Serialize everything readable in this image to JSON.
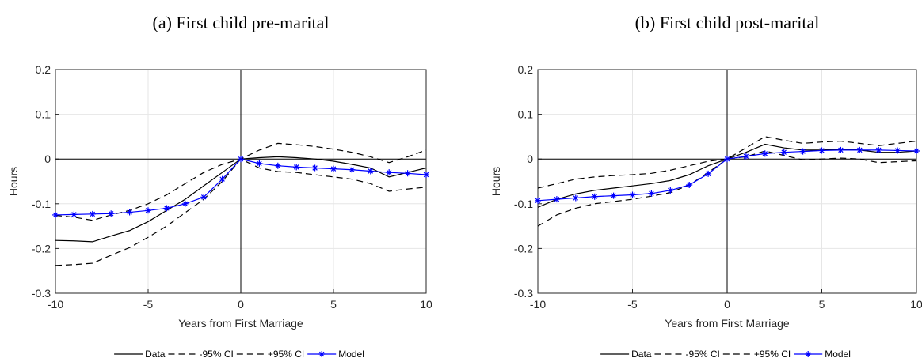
{
  "chart_data": [
    {
      "type": "line",
      "title": "(a) First child pre-marital",
      "xlabel": "Years from First Marriage",
      "ylabel": "Hours",
      "x": [
        -10,
        -9,
        -8,
        -7,
        -6,
        -5,
        -4,
        -3,
        -2,
        -1,
        0,
        1,
        2,
        3,
        4,
        5,
        6,
        7,
        8,
        9,
        10
      ],
      "xlim": [
        -10,
        10
      ],
      "xticks": [
        -10,
        -5,
        0,
        5,
        10
      ],
      "ylim": [
        -0.3,
        0.2
      ],
      "yticks": [
        -0.3,
        -0.2,
        -0.1,
        0,
        0.1,
        0.2
      ],
      "grid": true,
      "legend": "bottom",
      "series": [
        {
          "name": "Data",
          "color": "#000000",
          "linestyle": "solid",
          "values": [
            -0.182,
            -0.183,
            -0.185,
            -0.172,
            -0.16,
            -0.14,
            -0.115,
            -0.09,
            -0.06,
            -0.03,
            0,
            0.003,
            0.005,
            0.003,
            0,
            -0.005,
            -0.012,
            -0.02,
            -0.04,
            -0.03,
            -0.02
          ]
        },
        {
          "name": "-95% CI",
          "color": "#000000",
          "linestyle": "dashed",
          "values": [
            -0.238,
            -0.236,
            -0.233,
            -0.215,
            -0.198,
            -0.175,
            -0.15,
            -0.12,
            -0.09,
            -0.05,
            0,
            -0.02,
            -0.028,
            -0.03,
            -0.035,
            -0.04,
            -0.045,
            -0.055,
            -0.072,
            -0.067,
            -0.063
          ]
        },
        {
          "name": "+95% CI",
          "color": "#000000",
          "linestyle": "dashed",
          "values": [
            -0.126,
            -0.13,
            -0.137,
            -0.125,
            -0.115,
            -0.1,
            -0.08,
            -0.055,
            -0.03,
            -0.012,
            0,
            0.02,
            0.035,
            0.032,
            0.028,
            0.022,
            0.015,
            0.005,
            -0.008,
            0.005,
            0.02
          ]
        },
        {
          "name": "Model",
          "color": "#0000ff",
          "linestyle": "solid",
          "marker": "*",
          "values": [
            -0.125,
            -0.124,
            -0.123,
            -0.122,
            -0.119,
            -0.115,
            -0.11,
            -0.1,
            -0.085,
            -0.045,
            0,
            -0.01,
            -0.015,
            -0.018,
            -0.02,
            -0.022,
            -0.024,
            -0.027,
            -0.03,
            -0.032,
            -0.035
          ]
        }
      ]
    },
    {
      "type": "line",
      "title": "(b) First child post-marital",
      "xlabel": "Years from First Marriage",
      "ylabel": "Hours",
      "x": [
        -10,
        -9,
        -8,
        -7,
        -6,
        -5,
        -4,
        -3,
        -2,
        -1,
        0,
        1,
        2,
        3,
        4,
        5,
        6,
        7,
        8,
        9,
        10
      ],
      "xlim": [
        -10,
        10
      ],
      "xticks": [
        -10,
        -5,
        0,
        5,
        10
      ],
      "ylim": [
        -0.3,
        0.2
      ],
      "yticks": [
        -0.3,
        -0.2,
        -0.1,
        0,
        0.1,
        0.2
      ],
      "grid": true,
      "legend": "bottom",
      "series": [
        {
          "name": "Data",
          "color": "#000000",
          "linestyle": "solid",
          "values": [
            -0.108,
            -0.09,
            -0.078,
            -0.07,
            -0.065,
            -0.06,
            -0.055,
            -0.048,
            -0.035,
            -0.015,
            0,
            0.015,
            0.033,
            0.025,
            0.02,
            0.02,
            0.022,
            0.02,
            0.015,
            0.015,
            0.018
          ]
        },
        {
          "name": "-95% CI",
          "color": "#000000",
          "linestyle": "dashed",
          "values": [
            -0.15,
            -0.125,
            -0.11,
            -0.1,
            -0.095,
            -0.09,
            -0.083,
            -0.075,
            -0.058,
            -0.03,
            0,
            0.005,
            0.018,
            0.008,
            -0.002,
            0,
            0.002,
            0,
            -0.008,
            -0.006,
            -0.004
          ]
        },
        {
          "name": "+95% CI",
          "color": "#000000",
          "linestyle": "dashed",
          "values": [
            -0.065,
            -0.055,
            -0.045,
            -0.04,
            -0.037,
            -0.035,
            -0.032,
            -0.025,
            -0.015,
            -0.005,
            0,
            0.025,
            0.05,
            0.042,
            0.035,
            0.038,
            0.04,
            0.035,
            0.03,
            0.035,
            0.04
          ]
        },
        {
          "name": "Model",
          "color": "#0000ff",
          "linestyle": "solid",
          "marker": "*",
          "values": [
            -0.093,
            -0.09,
            -0.087,
            -0.084,
            -0.082,
            -0.08,
            -0.077,
            -0.07,
            -0.058,
            -0.033,
            0,
            0.006,
            0.012,
            0.015,
            0.017,
            0.019,
            0.02,
            0.02,
            0.02,
            0.019,
            0.018
          ]
        }
      ]
    }
  ]
}
